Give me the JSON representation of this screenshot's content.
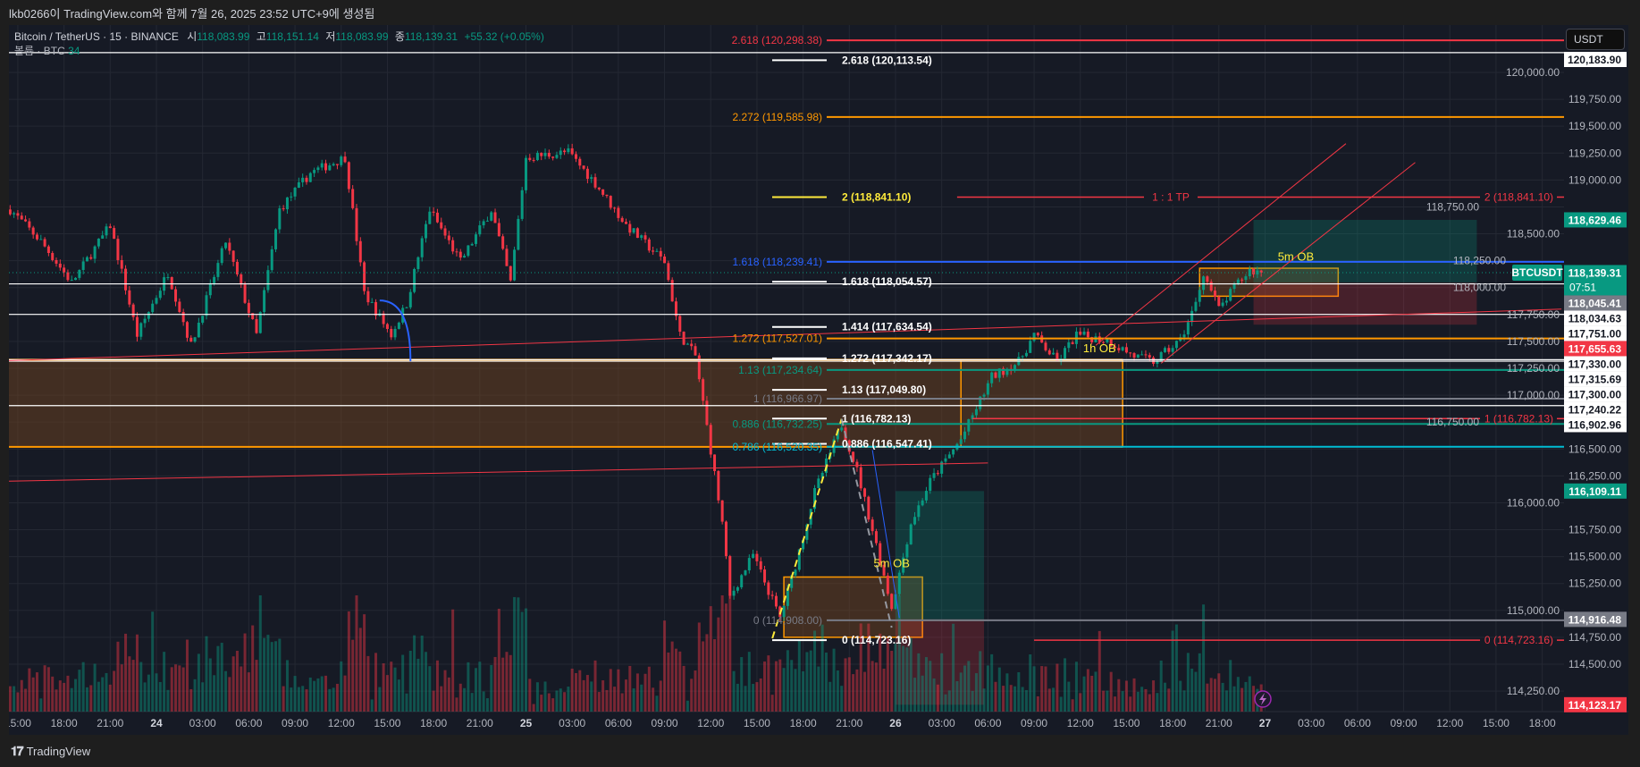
{
  "header": {
    "created_by": "lkb0266이 TradingView.com와 함께 7월 26, 2025 23:52 UTC+9에 생성됨"
  },
  "legend": {
    "symbol": "Bitcoin / TetherUS · 15 · BINANCE",
    "o_label": "시",
    "o": "118,083.99",
    "h_label": "고",
    "h": "118,151.14",
    "l_label": "저",
    "l": "118,083.99",
    "c_label": "종",
    "c": "118,139.31",
    "change": "+55.32 (+0.05%)",
    "volume_label": "볼륨 · BTC",
    "volume": "34"
  },
  "price_axis": {
    "currency": "USDT",
    "symbol_tag": "BTCUSDT",
    "countdown": "07:51",
    "badges": [
      {
        "text": "120,183.90",
        "price": 120183.9,
        "bg": "#ffffff",
        "fg": "#131722"
      },
      {
        "text": "118,629.46",
        "price": 118629.46,
        "bg": "#089981",
        "fg": "#ffffff"
      },
      {
        "text": "118,139.31",
        "price": 118139.31,
        "bg": "#089981",
        "fg": "#ffffff",
        "current": true
      },
      {
        "text": "118,045.41",
        "price": 118045.41,
        "bg": "#787b86",
        "fg": "#ffffff"
      },
      {
        "text": "118,034.63",
        "price": 118034.63,
        "bg": "#ffffff",
        "fg": "#131722"
      },
      {
        "text": "117,751.00",
        "price": 117751.0,
        "bg": "#ffffff",
        "fg": "#131722"
      },
      {
        "text": "117,655.63",
        "price": 117655.63,
        "bg": "#f23645",
        "fg": "#ffffff"
      },
      {
        "text": "117,330.00",
        "price": 117330.0,
        "bg": "#ffffff",
        "fg": "#131722"
      },
      {
        "text": "117,315.69",
        "price": 117315.69,
        "bg": "#ffffff",
        "fg": "#131722"
      },
      {
        "text": "117,300.00",
        "price": 117300.0,
        "bg": "#ffffff",
        "fg": "#131722"
      },
      {
        "text": "117,240.22",
        "price": 117240.22,
        "bg": "#ffffff",
        "fg": "#131722"
      },
      {
        "text": "116,902.96",
        "price": 116902.96,
        "bg": "#ffffff",
        "fg": "#131722"
      },
      {
        "text": "116,109.11",
        "price": 116109.11,
        "bg": "#089981",
        "fg": "#ffffff"
      },
      {
        "text": "114,916.48",
        "price": 114916.48,
        "bg": "#787b86",
        "fg": "#ffffff"
      },
      {
        "text": "114,123.17",
        "price": 114123.17,
        "bg": "#f23645",
        "fg": "#ffffff"
      }
    ]
  },
  "colors": {
    "up": "#089981",
    "down": "#f23645",
    "background": "#161a25",
    "grid": "#242833",
    "axis_text": "#b2b5be"
  },
  "footer": {
    "logo_text": "TradingView"
  },
  "chart_data": {
    "type": "candlestick",
    "interval": "15",
    "symbol": "BTCUSDT",
    "ylim": [
      114123.17,
      120400
    ],
    "y_ticks": [
      "120,000.00",
      "119,750.00",
      "119,500.00",
      "119,250.00",
      "119,000.00",
      "118,750.00",
      "118,500.00",
      "118,250.00",
      "118,000.00",
      "117,750.00",
      "117,500.00",
      "117,250.00",
      "117,000.00",
      "116,750.00",
      "116,500.00",
      "116,250.00",
      "116,000.00",
      "115,750.00",
      "115,500.00",
      "115,250.00",
      "115,000.00",
      "114,750.00",
      "114,500.00",
      "114,250.00"
    ],
    "x_ticks": [
      "15:00",
      "18:00",
      "21:00",
      "24",
      "03:00",
      "06:00",
      "09:00",
      "12:00",
      "15:00",
      "18:00",
      "21:00",
      "25",
      "03:00",
      "06:00",
      "09:00",
      "12:00",
      "15:00",
      "18:00",
      "21:00",
      "26",
      "03:00",
      "06:00",
      "09:00",
      "12:00",
      "15:00",
      "18:00",
      "21:00",
      "27",
      "03:00",
      "06:00",
      "09:00",
      "12:00",
      "15:00",
      "18:00"
    ],
    "close_points": [
      [
        "23 14:30",
        118726
      ],
      [
        "23 16:30",
        118430
      ],
      [
        "23 18:30",
        118045
      ],
      [
        "23 21:00",
        118580
      ],
      [
        "23 22:45",
        117560
      ],
      [
        "24 00:45",
        118140
      ],
      [
        "24 02:15",
        117460
      ],
      [
        "24 04:30",
        118430
      ],
      [
        "24 06:30",
        117560
      ],
      [
        "24 08:00",
        118726
      ],
      [
        "24 10:00",
        119066
      ],
      [
        "24 12:15",
        119210
      ],
      [
        "24 13:30",
        117950
      ],
      [
        "24 15:15",
        117560
      ],
      [
        "24 16:15",
        117850
      ],
      [
        "24 17:45",
        118725
      ],
      [
        "24 19:45",
        118240
      ],
      [
        "24 21:45",
        118725
      ],
      [
        "24 23:00",
        118045
      ],
      [
        "25 00:00",
        119210
      ],
      [
        "25 02:45",
        119260
      ],
      [
        "25 04:30",
        118970
      ],
      [
        "25 06:30",
        118580
      ],
      [
        "25 09:00",
        118240
      ],
      [
        "25 10:00",
        117560
      ],
      [
        "25 11:00",
        117365
      ],
      [
        "25 12:00",
        116490
      ],
      [
        "25 12:45",
        115810
      ],
      [
        "25 13:15",
        115125
      ],
      [
        "25 14:45",
        115515
      ],
      [
        "25 16:30",
        114930
      ],
      [
        "25 17:30",
        115420
      ],
      [
        "25 18:45",
        116100
      ],
      [
        "25 20:30",
        116730
      ],
      [
        "25 21:30",
        116300
      ],
      [
        "25 22:45",
        115610
      ],
      [
        "25 23:45",
        115030
      ],
      [
        "26 01:00",
        115810
      ],
      [
        "26 02:15",
        116200
      ],
      [
        "26 04:15",
        116590
      ],
      [
        "26 05:15",
        116880
      ],
      [
        "26 06:15",
        117170
      ],
      [
        "26 08:00",
        117310
      ],
      [
        "26 09:00",
        117560
      ],
      [
        "26 10:30",
        117310
      ],
      [
        "26 11:45",
        117560
      ],
      [
        "26 13:45",
        117510
      ],
      [
        "26 15:30",
        117365
      ],
      [
        "26 16:45",
        117310
      ],
      [
        "26 18:30",
        117510
      ],
      [
        "26 19:30",
        117850
      ],
      [
        "26 20:00",
        118140
      ],
      [
        "26 21:00",
        117800
      ],
      [
        "26 22:15",
        118045
      ],
      [
        "26 23:00",
        118160
      ],
      [
        "26 23:45",
        118139.31
      ]
    ],
    "fib_left_labels": [
      {
        "label": "2.618 (120,298.38)",
        "price": 120298.38,
        "color": "#f23645"
      },
      {
        "label": "2.272 (119,585.98)",
        "price": 119585.98,
        "color": "#ff9800"
      },
      {
        "label": "1.618 (118,239.41)",
        "price": 118239.41,
        "color": "#2962ff"
      },
      {
        "label": "1.272 (117,527.01)",
        "price": 117527.01,
        "color": "#ff9800"
      },
      {
        "label": "1.13 (117,234.64)",
        "price": 117234.64,
        "color": "#089981"
      },
      {
        "label": "1 (116,966.97)",
        "price": 116966.97,
        "color": "#787b86"
      },
      {
        "label": "0.886 (116,732.25)",
        "price": 116732.25,
        "color": "#089981"
      },
      {
        "label": "0.786 (116,520.35)",
        "price": 116520.35,
        "color": "#00bcd4"
      },
      {
        "label": "0 (114,908.00)",
        "price": 114908.0,
        "color": "#787b86"
      }
    ],
    "fib_white_labels": [
      {
        "label": "2.618 (120,113.54)",
        "price": 120113.54,
        "color": "#ffffff"
      },
      {
        "label": "2 (118,841.10)",
        "price": 118841.1,
        "color": "#ffeb3b"
      },
      {
        "label": "1.618 (118,054.57)",
        "price": 118054.57,
        "color": "#ffffff"
      },
      {
        "label": "1.414 (117,634.54)",
        "price": 117634.54,
        "color": "#ffffff"
      },
      {
        "label": "1.272 (117,342.17)",
        "price": 117342.17,
        "color": "#ffffff"
      },
      {
        "label": "1.13 (117,049.80)",
        "price": 117049.8,
        "color": "#ffffff"
      },
      {
        "label": "1 (116,782.13)",
        "price": 116782.13,
        "color": "#ffffff"
      },
      {
        "label": "0.886 (116,547.41)",
        "price": 116547.41,
        "color": "#ffffff"
      },
      {
        "label": "0 (114,723.16)",
        "price": 114723.16,
        "color": "#ffffff"
      }
    ],
    "target_levels": [
      {
        "label": "2 (118,841.10)",
        "price": 118841.1,
        "from": "26 04:00",
        "mid_label": "1 : 1 TP"
      },
      {
        "label": "1 (116,782.13)",
        "price": 116782.13,
        "from": "26 05:00"
      },
      {
        "label": "0 (114,723.16)",
        "price": 114723.16,
        "from": "26 09:00"
      }
    ],
    "horizontal_lines": [
      {
        "price": 120183.9,
        "color": "#ffffff"
      },
      {
        "price": 118034.63,
        "color": "#ffffff"
      },
      {
        "price": 117751.0,
        "color": "#ffffff"
      },
      {
        "price": 117330.0,
        "color": "#ffffff"
      },
      {
        "price": 117315.69,
        "color": "#ffffff"
      },
      {
        "price": 116902.96,
        "color": "#ffffff"
      }
    ],
    "zones": [
      {
        "name": "support-zone",
        "from": "23 14:00",
        "to": "26 14:45",
        "top": 117330,
        "bottom": 116520,
        "fill": "rgba(120,72,30,0.45)",
        "border": "#ff9800",
        "border_from": "26 04:15"
      },
      {
        "name": "5m-ob-lower",
        "label": "5m OB",
        "from": "25 16:45",
        "to": "26 01:45",
        "top": 115310,
        "bottom": 114750,
        "fill": "rgba(120,72,30,0.45)",
        "border": "#ff9800"
      },
      {
        "name": "5m-ob-upper",
        "label": "5m OB",
        "from": "26 19:45",
        "to": "27 04:45",
        "top": 118180,
        "bottom": 117920,
        "fill": "rgba(120,72,30,0.45)",
        "border": "#ff9800"
      }
    ],
    "zone_labels": [
      {
        "text": "1h OB",
        "time": "26 13:15",
        "price": 117400
      },
      {
        "text": "5m OB",
        "time": "25 23:45",
        "price": 115400
      },
      {
        "text": "5m OB",
        "time": "27 02:00",
        "price": 118250
      }
    ],
    "positions": [
      {
        "from": "26 00:00",
        "to": "26 05:45",
        "target": 116109.11,
        "entry": 114916.48,
        "stop": 114123.17
      },
      {
        "from": "26 23:15",
        "to": "27 13:45",
        "target": 118629.46,
        "entry": 118045.41,
        "stop": 117655.63
      }
    ],
    "trendlines": [
      {
        "a": [
          "23 14:00",
          117320
        ],
        "b": [
          "27 19:15",
          117800
        ],
        "color": "#f23645"
      },
      {
        "a": [
          "23 14:00",
          116200
        ],
        "b": [
          "26 06:00",
          116370
        ],
        "color": "#f23645"
      },
      {
        "a": [
          "26 13:00",
          117463
        ],
        "b": [
          "27 05:15",
          119338
        ],
        "color": "#f23645"
      },
      {
        "a": [
          "26 17:15",
          117297
        ],
        "b": [
          "27 09:45",
          119163
        ],
        "color": "#f23645"
      },
      {
        "a": [
          "25 16:00",
          114740
        ],
        "b": [
          "25 20:30",
          116780
        ],
        "color": "#ffeb3b",
        "dash": true
      },
      {
        "a": [
          "25 20:30",
          116780
        ],
        "b": [
          "25 23:45",
          114840
        ],
        "color": "#9598a1",
        "dash": true
      },
      {
        "a": [
          "25 22:30",
          116490
        ],
        "b": [
          "26 00:15",
          114930
        ],
        "color": "#2962ff"
      }
    ],
    "arc": {
      "a": [
        "24 14:30",
        117880
      ],
      "b": [
        "24 16:30",
        117315
      ],
      "color": "#2962ff"
    },
    "last_price": 118139.31
  }
}
